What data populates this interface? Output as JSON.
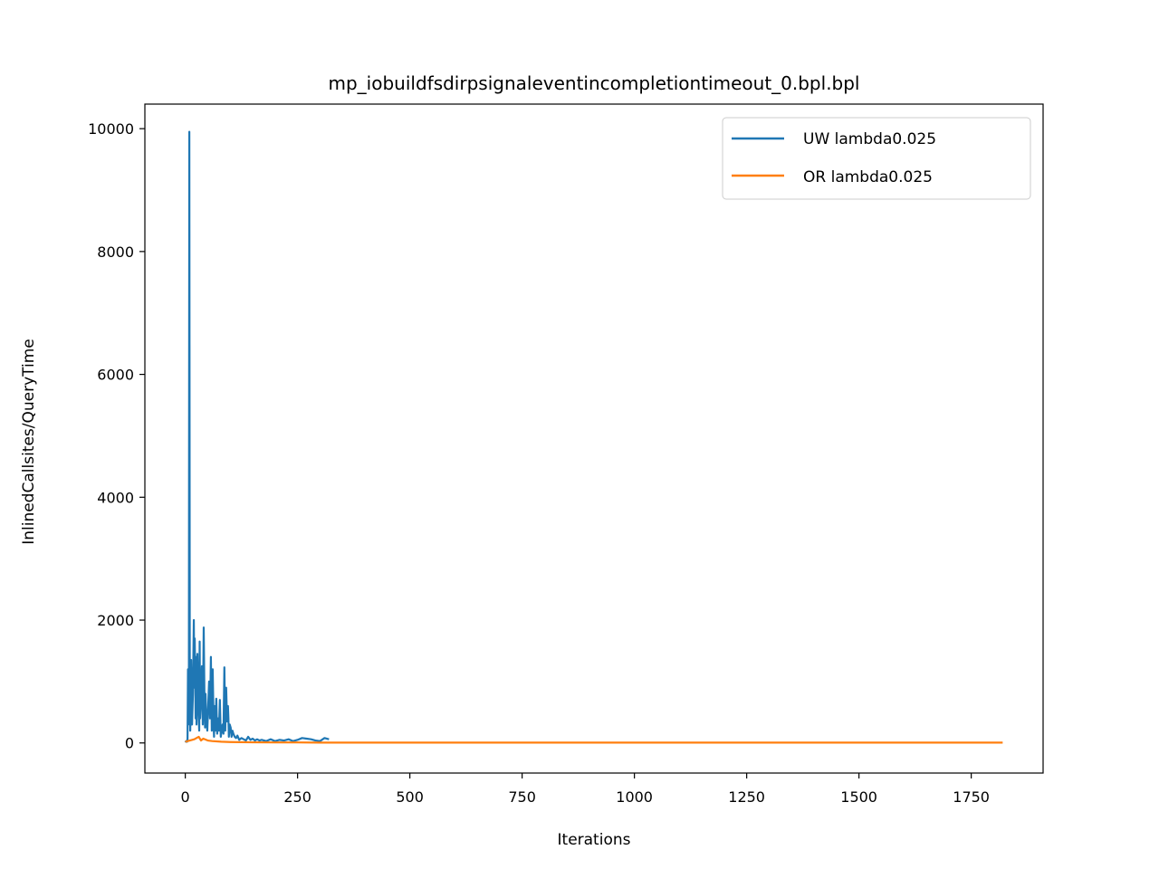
{
  "chart_data": {
    "type": "line",
    "title": "mp_iobuildfsdirpsignaleventincompletiontimeout_0.bpl.bpl",
    "xlabel": "Iterations",
    "ylabel": "InlinedCallsites/QueryTime",
    "xlim": [
      -90,
      1910
    ],
    "ylim": [
      -490,
      10400
    ],
    "xticks": [
      0,
      250,
      500,
      750,
      1000,
      1250,
      1500,
      1750
    ],
    "yticks": [
      0,
      2000,
      4000,
      6000,
      8000,
      10000
    ],
    "legend_position": "upper right",
    "grid": false,
    "series": [
      {
        "name": "UW lambda0.025",
        "color": "#1f77b4",
        "x": [
          0,
          2,
          4,
          5,
          6,
          7,
          8,
          9,
          10,
          11,
          12,
          13,
          15,
          17,
          19,
          20,
          21,
          23,
          24,
          25,
          27,
          29,
          31,
          32,
          33,
          35,
          37,
          39,
          41,
          43,
          44,
          45,
          47,
          49,
          51,
          53,
          55,
          57,
          59,
          61,
          63,
          64,
          65,
          67,
          69,
          71,
          73,
          75,
          77,
          79,
          81,
          83,
          85,
          87,
          89,
          91,
          93,
          95,
          96,
          97,
          99,
          101,
          103,
          105,
          107,
          110,
          113,
          116,
          120,
          125,
          130,
          135,
          140,
          145,
          150,
          155,
          160,
          165,
          170,
          180,
          190,
          200,
          210,
          220,
          230,
          240,
          250,
          260,
          270,
          280,
          290,
          300,
          310,
          320
        ],
        "values": [
          10,
          30,
          20,
          60,
          1200,
          300,
          800,
          9950,
          1200,
          200,
          700,
          1350,
          300,
          800,
          2000,
          900,
          1700,
          400,
          1400,
          300,
          1450,
          600,
          200,
          1650,
          400,
          700,
          1250,
          300,
          1880,
          500,
          250,
          800,
          400,
          200,
          600,
          1000,
          400,
          1400,
          200,
          1200,
          300,
          100,
          600,
          200,
          720,
          150,
          400,
          200,
          700,
          100,
          200,
          300,
          150,
          1230,
          200,
          900,
          350,
          600,
          400,
          100,
          300,
          250,
          100,
          200,
          150,
          100,
          80,
          120,
          50,
          80,
          60,
          40,
          100,
          50,
          70,
          40,
          60,
          40,
          50,
          30,
          60,
          30,
          50,
          40,
          60,
          30,
          50,
          80,
          70,
          60,
          40,
          30,
          80,
          60
        ]
      },
      {
        "name": "OR lambda0.025",
        "color": "#ff7f0e",
        "x": [
          0,
          10,
          20,
          30,
          35,
          40,
          50,
          60,
          80,
          100,
          150,
          200,
          250,
          300,
          400,
          500,
          600,
          700,
          800,
          900,
          1000,
          1100,
          1200,
          1300,
          1400,
          1500,
          1600,
          1700,
          1800,
          1820
        ],
        "values": [
          20,
          40,
          60,
          100,
          40,
          70,
          40,
          30,
          20,
          15,
          10,
          8,
          8,
          6,
          5,
          5,
          5,
          5,
          5,
          5,
          5,
          5,
          5,
          5,
          5,
          5,
          5,
          5,
          5,
          5
        ]
      }
    ]
  }
}
